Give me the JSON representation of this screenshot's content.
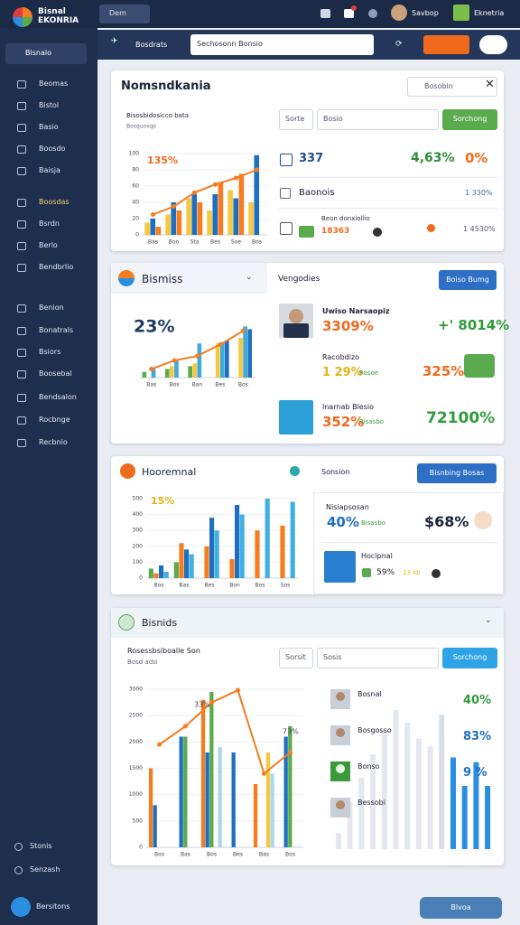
{
  "topbar": {
    "brand": [
      "Bisnal",
      "EKONRIA"
    ],
    "tab": "Dem",
    "user": "Savbop",
    "app": "Eknetria"
  },
  "toolbar": {
    "button": "Bosdrats",
    "search": "Sechosonn Bonsio"
  },
  "sidebar": {
    "active": "Bisnalo",
    "items": [
      "Beomas",
      "Bistol",
      "Basio",
      "Boosdo",
      "Baisja",
      "Boosdas",
      "Bsrdn",
      "Berlo",
      "Bendbrlio"
    ],
    "items2": [
      "Benion",
      "Bonatrals",
      "Bsiors",
      "Boosebal",
      "Bendsalon",
      "Rocbnge",
      "Recbnio"
    ],
    "footer": [
      "Stonis",
      "Senzash"
    ],
    "button": "Bersitons"
  },
  "panels": [
    {
      "title": "Nomsndkania",
      "search": "Bosobin",
      "chart": {
        "subtitle": "Bisosbidosicco bata",
        "caption": "Bosquosqo",
        "annotations": [
          "135%"
        ],
        "ylim": [
          0,
          100
        ],
        "yticks": [
          0,
          20,
          40,
          60,
          80,
          100
        ],
        "categories": [
          "Bas",
          "Boo",
          "Sta",
          "Bes",
          "Soe",
          "Bos"
        ],
        "series": [
          {
            "color": "#f5c842",
            "values": [
              15,
              25,
              45,
              30,
              55,
              40
            ]
          },
          {
            "color": "#1f6fc0",
            "values": [
              20,
              40,
              50,
              50,
              45,
              98
            ]
          },
          {
            "color": "#f57c1f",
            "values": [
              10,
              30,
              40,
              65,
              75,
              0
            ]
          }
        ],
        "line": {
          "color": "#f57c1f",
          "values": [
            25,
            35,
            52,
            62,
            70,
            80
          ]
        }
      },
      "filter": {
        "input": "Sorte",
        "placeholder": "Bosio",
        "button": "Sorchong"
      },
      "rows": [
        {
          "label": "337",
          "value": "4,63%",
          "change": "0%"
        },
        {
          "label": "Baonois",
          "value": "1 330%"
        },
        {
          "label": "Beon donxiollio",
          "sub": "18363",
          "value": "1 4530%"
        }
      ]
    },
    {
      "title": "Bismiss",
      "chart": {
        "annotations": [
          "23%"
        ],
        "ylim": [
          0,
          100
        ],
        "categories": [
          "Bas",
          "Bos",
          "Ban",
          "Bes",
          "Bos"
        ],
        "series": [
          {
            "color": "#5aab4d",
            "values": [
              10,
              15,
              20,
              0,
              0
            ]
          },
          {
            "color": "#f5c842",
            "values": [
              0,
              20,
              25,
              60,
              70
            ]
          },
          {
            "color": "#3fa9d8",
            "values": [
              15,
              30,
              60,
              62,
              90
            ]
          },
          {
            "color": "#1f6fc0",
            "values": [
              0,
              0,
              0,
              65,
              85
            ]
          }
        ],
        "line": {
          "color": "#f57c1f",
          "values": [
            15,
            30,
            38,
            58,
            82
          ]
        }
      },
      "heading": "Vengodies",
      "button": "Boiso Bumg",
      "rows": [
        {
          "name": "Uwiso Narsaopiz",
          "value": "3309%",
          "change": "+' 8014%"
        },
        {
          "name": "Racobdizo",
          "value": "1 29%",
          "tag": "Rosoe",
          "change": "325%"
        },
        {
          "name": "Inarnab Blesio",
          "value": "352%",
          "tag": "Bisasbo",
          "change": "72100%"
        }
      ]
    },
    {
      "title": "Hooremnal",
      "chart": {
        "annotations": [
          "15%"
        ],
        "ylim": [
          0,
          500
        ],
        "yticks": [
          0,
          100,
          200,
          300,
          400,
          500
        ],
        "categories": [
          "Bos",
          "Bas",
          "Bes",
          "Bon",
          "Bos",
          "Sos"
        ],
        "series": [
          {
            "color": "#5aab4d",
            "values": [
              60,
              100,
              0,
              0,
              0,
              0
            ]
          },
          {
            "color": "#f57c1f",
            "values": [
              30,
              220,
              200,
              120,
              300,
              330
            ]
          },
          {
            "color": "#1f6fc0",
            "values": [
              80,
              180,
              380,
              460,
              0,
              0
            ]
          },
          {
            "color": "#3fb0e0",
            "values": [
              40,
              150,
              300,
              400,
              500,
              480
            ]
          }
        ]
      },
      "heading": "Sonsion",
      "button": "Bisnbing Bosas",
      "card": {
        "name": "Nisiapsosan",
        "value": "40%",
        "tag": "Bisasbo",
        "total": "$68%"
      },
      "item": {
        "name": "Hocipnal",
        "value": "59%",
        "tag": "13 kb"
      }
    },
    {
      "title": "Bisnids",
      "chart": {
        "subtitle": "Rosessbsiboalle Son",
        "caption": "Bosd adsi",
        "annotations": [
          "33%",
          "73%"
        ],
        "ylim": [
          0,
          3000
        ],
        "yticks": [
          0,
          500,
          1000,
          1500,
          2000,
          2500,
          3000
        ],
        "categories": [
          "Bos",
          "Bas",
          "Bos",
          "Bes",
          "Bas",
          "Bos"
        ],
        "series": [
          {
            "color": "#f57c1f",
            "values": [
              1500,
              0,
              2800,
              0,
              1200,
              0
            ]
          },
          {
            "color": "#1f6fc0",
            "values": [
              800,
              2100,
              1800,
              1800,
              0,
              2100
            ]
          },
          {
            "color": "#5aab4d",
            "values": [
              0,
              2100,
              2950,
              0,
              0,
              2300
            ]
          },
          {
            "color": "#f5c842",
            "values": [
              0,
              0,
              0,
              0,
              1800,
              0
            ]
          },
          {
            "color": "#a9d8e8",
            "values": [
              0,
              0,
              1900,
              0,
              1400,
              0
            ]
          }
        ],
        "line": {
          "color": "#f57c1f",
          "values": [
            1950,
            2300,
            2750,
            2980,
            1400,
            1800
          ]
        }
      },
      "filter": {
        "input": "Sorsit",
        "placeholder": "Sosis",
        "button": "Sorchong"
      },
      "rows": [
        {
          "name": "Bosnal",
          "value": "40%"
        },
        {
          "name": "Bosgosso",
          "value": "83%"
        },
        {
          "name": "Bonso",
          "value": "9 %"
        },
        {
          "name": "Bessobi"
        }
      ],
      "side_chart": {
        "ylim": [
          0,
          100
        ],
        "values": [
          10,
          30,
          45,
          60,
          75,
          88,
          80,
          70,
          65,
          85,
          58,
          40,
          55,
          40
        ],
        "colors": [
          "#e3e8ee",
          "#e3e8ee",
          "#e3e8ee",
          "#e3e8ee",
          "#e3e8ee",
          "#e3e8ee",
          "#e3e8ee",
          "#e3e8ee",
          "#e3e8ee",
          "#d7dee6",
          "#2a8fe0",
          "#2a8fe0",
          "#2a8fe0",
          "#2a8fe0"
        ]
      }
    }
  ],
  "footer_button": "Blvoa"
}
